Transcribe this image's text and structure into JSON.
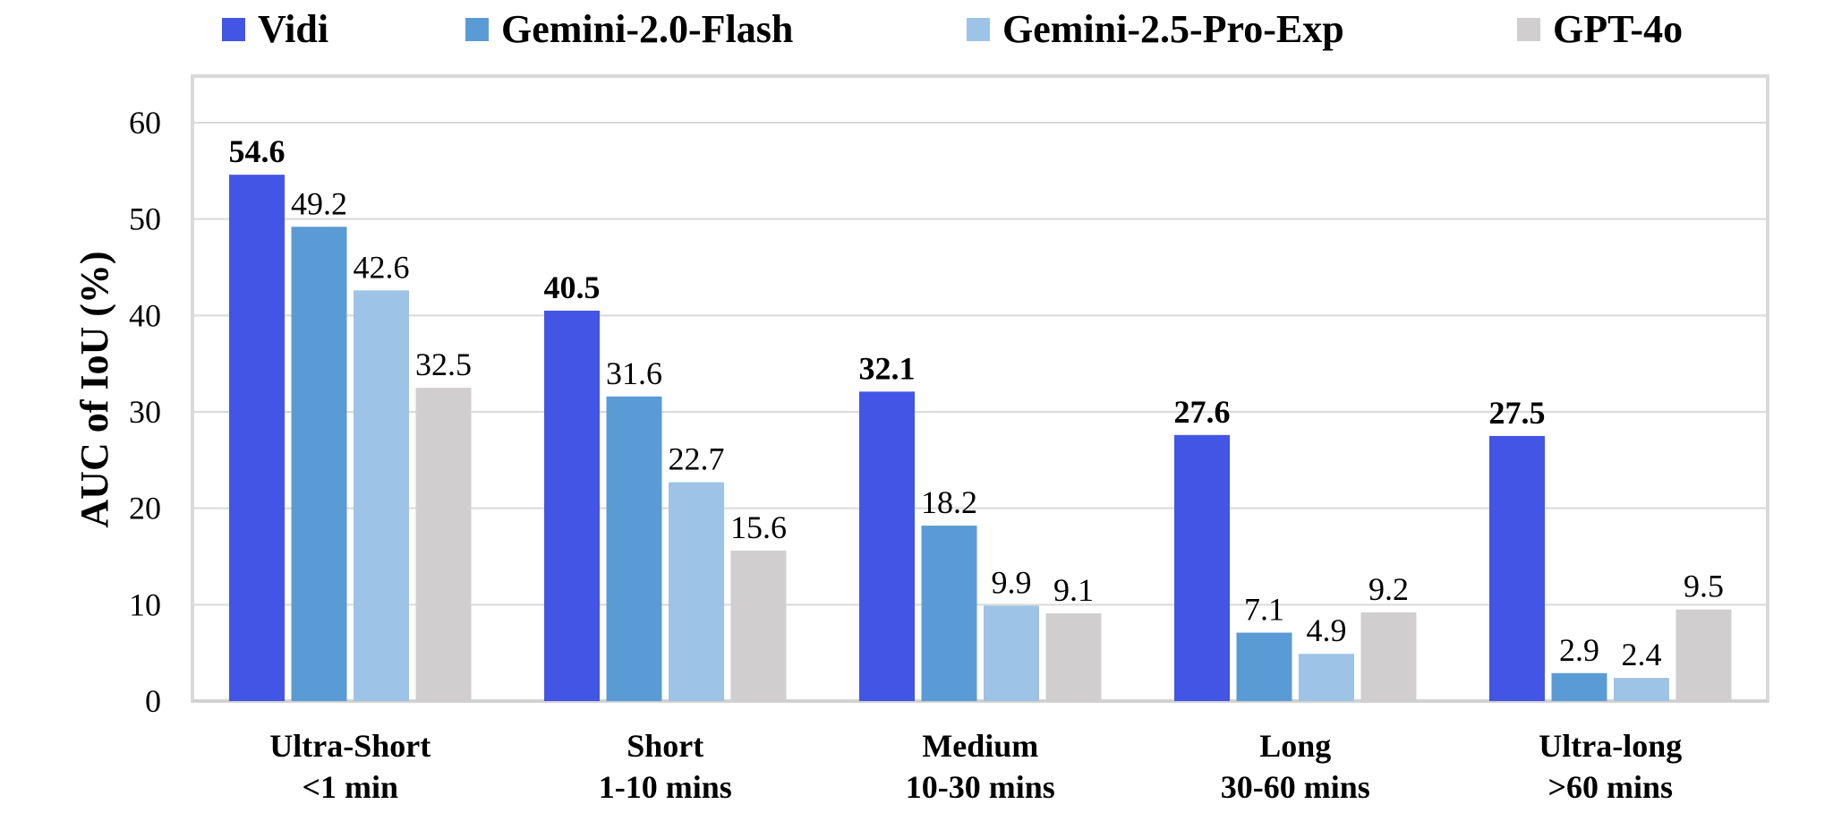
{
  "chart_data": {
    "type": "bar",
    "title": "",
    "ylabel": "AUC of IoU (%)",
    "xlabel": "",
    "ylim": [
      0,
      60
    ],
    "yticks": [
      0,
      10,
      20,
      30,
      40,
      50,
      60
    ],
    "grid": true,
    "legend_position": "top",
    "categories": [
      [
        "Ultra-Short",
        "<1 min"
      ],
      [
        "Short",
        "1-10 mins"
      ],
      [
        "Medium",
        "10-30 mins"
      ],
      [
        "Long",
        "30-60 mins"
      ],
      [
        "Ultra-long",
        ">60 mins"
      ]
    ],
    "series": [
      {
        "name": "Vidi",
        "color": "#4355e5",
        "bold_labels": true,
        "values": [
          54.6,
          40.5,
          32.1,
          27.6,
          27.5
        ]
      },
      {
        "name": "Gemini-2.0-Flash",
        "color": "#5b9bd5",
        "bold_labels": false,
        "values": [
          49.2,
          31.6,
          18.2,
          7.1,
          2.9
        ]
      },
      {
        "name": "Gemini-2.5-Pro-Exp",
        "color": "#9dc3e6",
        "bold_labels": false,
        "values": [
          42.6,
          22.7,
          9.9,
          4.9,
          2.4
        ]
      },
      {
        "name": "GPT-4o",
        "color": "#d0cece",
        "bold_labels": false,
        "values": [
          32.5,
          15.6,
          9.1,
          9.2,
          9.5
        ]
      }
    ]
  }
}
